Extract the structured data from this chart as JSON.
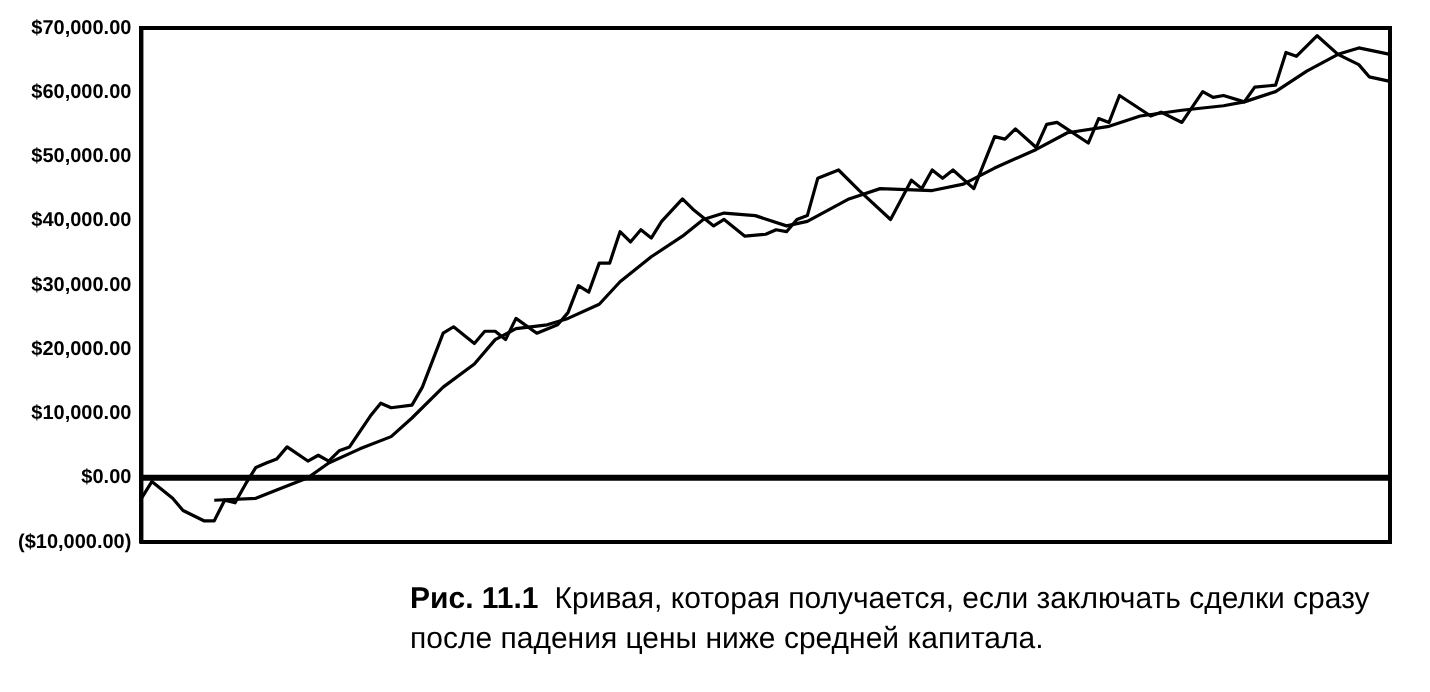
{
  "chart_data": {
    "type": "line",
    "annotations": [
      "Рис. 11.1",
      "Кривая, которая получается, если заключать сделки сразу после падения цены ниже средней капитала."
    ],
    "categories": [
      null,
      null,
      null,
      null,
      null,
      null,
      null,
      null,
      null,
      null,
      null,
      null,
      null,
      null,
      null,
      null,
      null,
      null,
      null,
      null,
      null,
      null,
      null,
      null,
      null,
      null,
      null,
      null,
      null,
      null,
      null,
      null,
      null,
      null,
      null,
      null,
      null,
      null,
      null,
      null,
      null,
      null,
      null,
      null,
      null,
      null,
      null,
      null,
      null,
      null,
      null,
      null,
      null,
      null,
      null,
      null,
      null,
      null,
      null,
      null,
      null,
      null,
      null,
      null,
      null,
      null,
      null,
      null,
      null,
      null,
      null,
      null,
      null,
      null,
      null,
      null,
      null,
      null,
      null,
      null,
      null,
      null,
      null,
      null,
      null,
      null,
      null,
      null,
      null,
      null,
      null,
      null,
      null,
      null,
      null,
      null,
      null,
      null,
      null,
      null,
      null,
      null,
      null,
      null,
      null,
      null,
      null,
      null,
      null,
      null,
      null,
      null,
      null,
      null,
      null,
      null,
      null,
      null,
      null,
      null,
      null
    ],
    "series": [
      {
        "color": "#000000",
        "values": [
          -3200,
          -600,
          null,
          -3200,
          -5100,
          null,
          -6700,
          -6700,
          -3500,
          -3900,
          -1000,
          1600,
          2300,
          2900,
          4800,
          null,
          2600,
          3500,
          2600,
          4200,
          4800,
          null,
          9600,
          11600,
          10900,
          null,
          11300,
          14100,
          null,
          22500,
          23500,
          null,
          20900,
          22800,
          22800,
          21500,
          24800,
          null,
          22500,
          null,
          23800,
          25700,
          29900,
          28900,
          33400,
          33400,
          38300,
          36700,
          38600,
          37300,
          39900,
          null,
          43400,
          41800,
          null,
          39200,
          40200,
          null,
          37600,
          null,
          37900,
          38600,
          38300,
          40200,
          40800,
          46600,
          null,
          47900,
          null,
          44700,
          null,
          null,
          40200,
          null,
          46300,
          45000,
          47900,
          46600,
          47900,
          null,
          45000,
          null,
          53100,
          52700,
          54300,
          null,
          51400,
          55000,
          55300,
          null,
          null,
          52100,
          55900,
          55300,
          59500,
          null,
          null,
          56300,
          56900,
          null,
          55300,
          null,
          60100,
          59200,
          59500,
          null,
          58500,
          60800,
          null,
          61100,
          66200,
          65600,
          null,
          68800,
          null,
          65900,
          null,
          64300,
          62400,
          null,
          61700
        ]
      },
      {
        "color": "#000000",
        "values": [
          null,
          null,
          null,
          null,
          null,
          null,
          null,
          -3500,
          null,
          null,
          null,
          -3200,
          null,
          -1900,
          null,
          null,
          0,
          null,
          2300,
          null,
          null,
          4500,
          null,
          null,
          6400,
          null,
          9300,
          null,
          null,
          14100,
          null,
          null,
          17700,
          null,
          21500,
          null,
          23200,
          null,
          null,
          23800,
          null,
          24800,
          null,
          null,
          27000,
          null,
          30500,
          null,
          null,
          34400,
          null,
          null,
          37600,
          null,
          40200,
          null,
          41200,
          null,
          null,
          40800,
          null,
          null,
          39200,
          null,
          39900,
          null,
          null,
          null,
          43400,
          null,
          null,
          45000,
          null,
          null,
          null,
          null,
          44700,
          null,
          null,
          45700,
          null,
          null,
          48200,
          null,
          null,
          null,
          51100,
          null,
          null,
          53700,
          null,
          null,
          null,
          54700,
          null,
          null,
          56300,
          null,
          null,
          null,
          57200,
          null,
          null,
          null,
          57900,
          null,
          58500,
          null,
          null,
          60100,
          null,
          null,
          63300,
          null,
          null,
          65900,
          null,
          66900,
          null,
          null,
          65900
        ]
      }
    ],
    "ylim": [
      -10000,
      70000
    ],
    "yticks": [
      {
        "value": -10000,
        "label": "($10,000.00)"
      },
      {
        "value": 0,
        "label": "$0.00"
      },
      {
        "value": 10000,
        "label": "$10,000.00"
      },
      {
        "value": 20000,
        "label": "$20,000.00"
      },
      {
        "value": 30000,
        "label": "$30,000.00"
      },
      {
        "value": 40000,
        "label": "$40,000.00"
      },
      {
        "value": 50000,
        "label": "$50,000.00"
      },
      {
        "value": 60000,
        "label": "$60,000.00"
      },
      {
        "value": 70000,
        "label": "$70,000.00"
      }
    ],
    "ref_lines": [
      {
        "axis": "y",
        "value": 0,
        "color": "#000000"
      }
    ],
    "grid": false,
    "legend": false,
    "marker": "none",
    "line_style": "solid",
    "tick_labels": "y"
  }
}
